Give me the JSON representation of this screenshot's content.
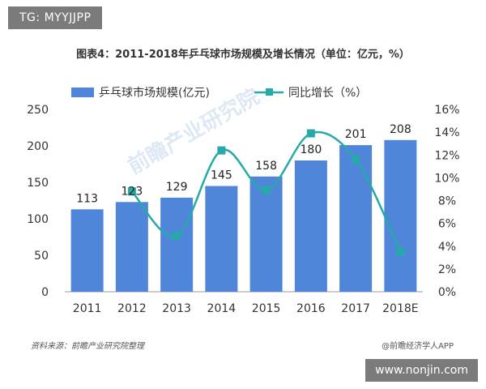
{
  "header_tag": "TG: MYYJJPP",
  "footer": {
    "source": "资料来源：前瞻产业研究院整理",
    "brand": "@前瞻经济学人APP",
    "site": "www.nonjin.com"
  },
  "watermark": "前瞻产业研究院",
  "chart_data": {
    "type": "bar",
    "title": "图表4：2011-2018年乒乓球市场规模及增长情况（单位：亿元，%）",
    "categories": [
      "2011",
      "2012",
      "2013",
      "2014",
      "2015",
      "2016",
      "2017",
      "2018E"
    ],
    "series": [
      {
        "name": "乒乓球市场规模(亿元)",
        "type": "bar",
        "axis": "left",
        "color": "#4f86d9",
        "values": [
          113,
          123,
          129,
          145,
          158,
          180,
          201,
          208
        ]
      },
      {
        "name": "同比增长（%）",
        "type": "line",
        "axis": "right",
        "color": "#27a9a9",
        "values": [
          null,
          8.8,
          4.9,
          12.4,
          8.9,
          13.9,
          11.6,
          3.5
        ]
      }
    ],
    "y_left": {
      "min": 0,
      "max": 250,
      "ticks": [
        0,
        50,
        100,
        150,
        200,
        250
      ]
    },
    "y_right": {
      "min": 0,
      "max": 16,
      "ticks": [
        "0%",
        "2%",
        "4%",
        "6%",
        "8%",
        "10%",
        "12%",
        "14%",
        "16%"
      ]
    },
    "data_labels": [
      "113",
      "123",
      "129",
      "145",
      "158",
      "180",
      "201",
      "208"
    ],
    "legend_position": "top",
    "grid": false
  }
}
